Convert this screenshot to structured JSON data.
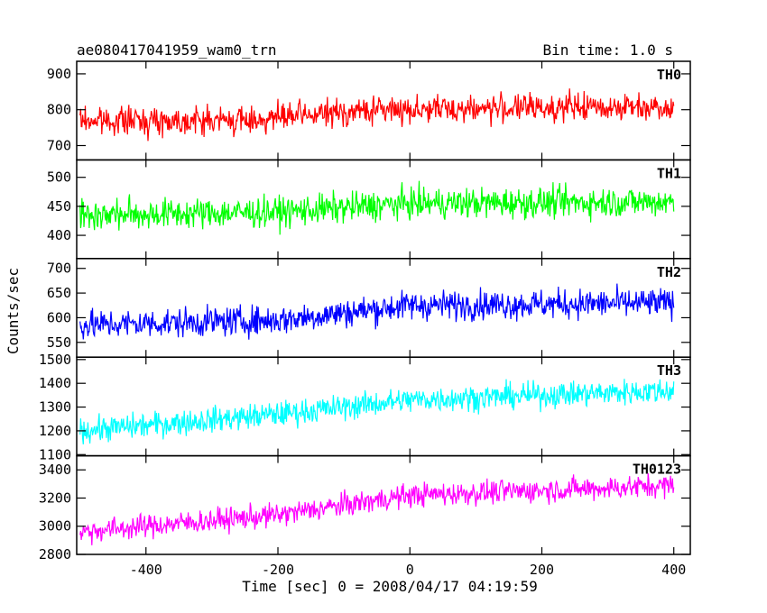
{
  "chart_data": {
    "type": "line",
    "title_left": "ae080417041959_wam0_trn",
    "title_right": "Bin time: 1.0 s",
    "xlabel": "Time [sec] 0 = 2008/04/17 04:19:59",
    "ylabel": "Counts/sec",
    "xlim": [
      -505,
      425
    ],
    "xticks": [
      -400,
      -200,
      0,
      200,
      400
    ],
    "x_range": [
      -500,
      400
    ],
    "series": [
      {
        "name": "TH0",
        "color": "#ff0000",
        "ylim": [
          660,
          935
        ],
        "yticks": [
          700,
          800,
          900
        ],
        "trend": [
          [
            -500,
            770
          ],
          [
            -250,
            770
          ],
          [
            -50,
            800
          ],
          [
            400,
            810
          ]
        ],
        "noise": 32
      },
      {
        "name": "TH1",
        "color": "#00ff00",
        "ylim": [
          360,
          530
        ],
        "yticks": [
          400,
          450,
          500
        ],
        "trend": [
          [
            -500,
            435
          ],
          [
            -200,
            440
          ],
          [
            0,
            455
          ],
          [
            400,
            458
          ]
        ],
        "noise": 22
      },
      {
        "name": "TH2",
        "color": "#0000ff",
        "ylim": [
          520,
          720
        ],
        "yticks": [
          550,
          600,
          650,
          700
        ],
        "trend": [
          [
            -500,
            585
          ],
          [
            -200,
            595
          ],
          [
            0,
            625
          ],
          [
            400,
            630
          ]
        ],
        "noise": 25
      },
      {
        "name": "TH3",
        "color": "#00ffff",
        "ylim": [
          1095,
          1510
        ],
        "yticks": [
          1100,
          1200,
          1300,
          1400,
          1500
        ],
        "trend": [
          [
            -500,
            1200
          ],
          [
            -200,
            1270
          ],
          [
            0,
            1330
          ],
          [
            400,
            1370
          ]
        ],
        "noise": 45
      },
      {
        "name": "TH0123",
        "color": "#ff00ff",
        "ylim": [
          2800,
          3500
        ],
        "yticks": [
          2800,
          3000,
          3200,
          3400
        ],
        "trend": [
          [
            -500,
            2960
          ],
          [
            -200,
            3080
          ],
          [
            0,
            3220
          ],
          [
            400,
            3290
          ]
        ],
        "noise": 70
      }
    ]
  }
}
